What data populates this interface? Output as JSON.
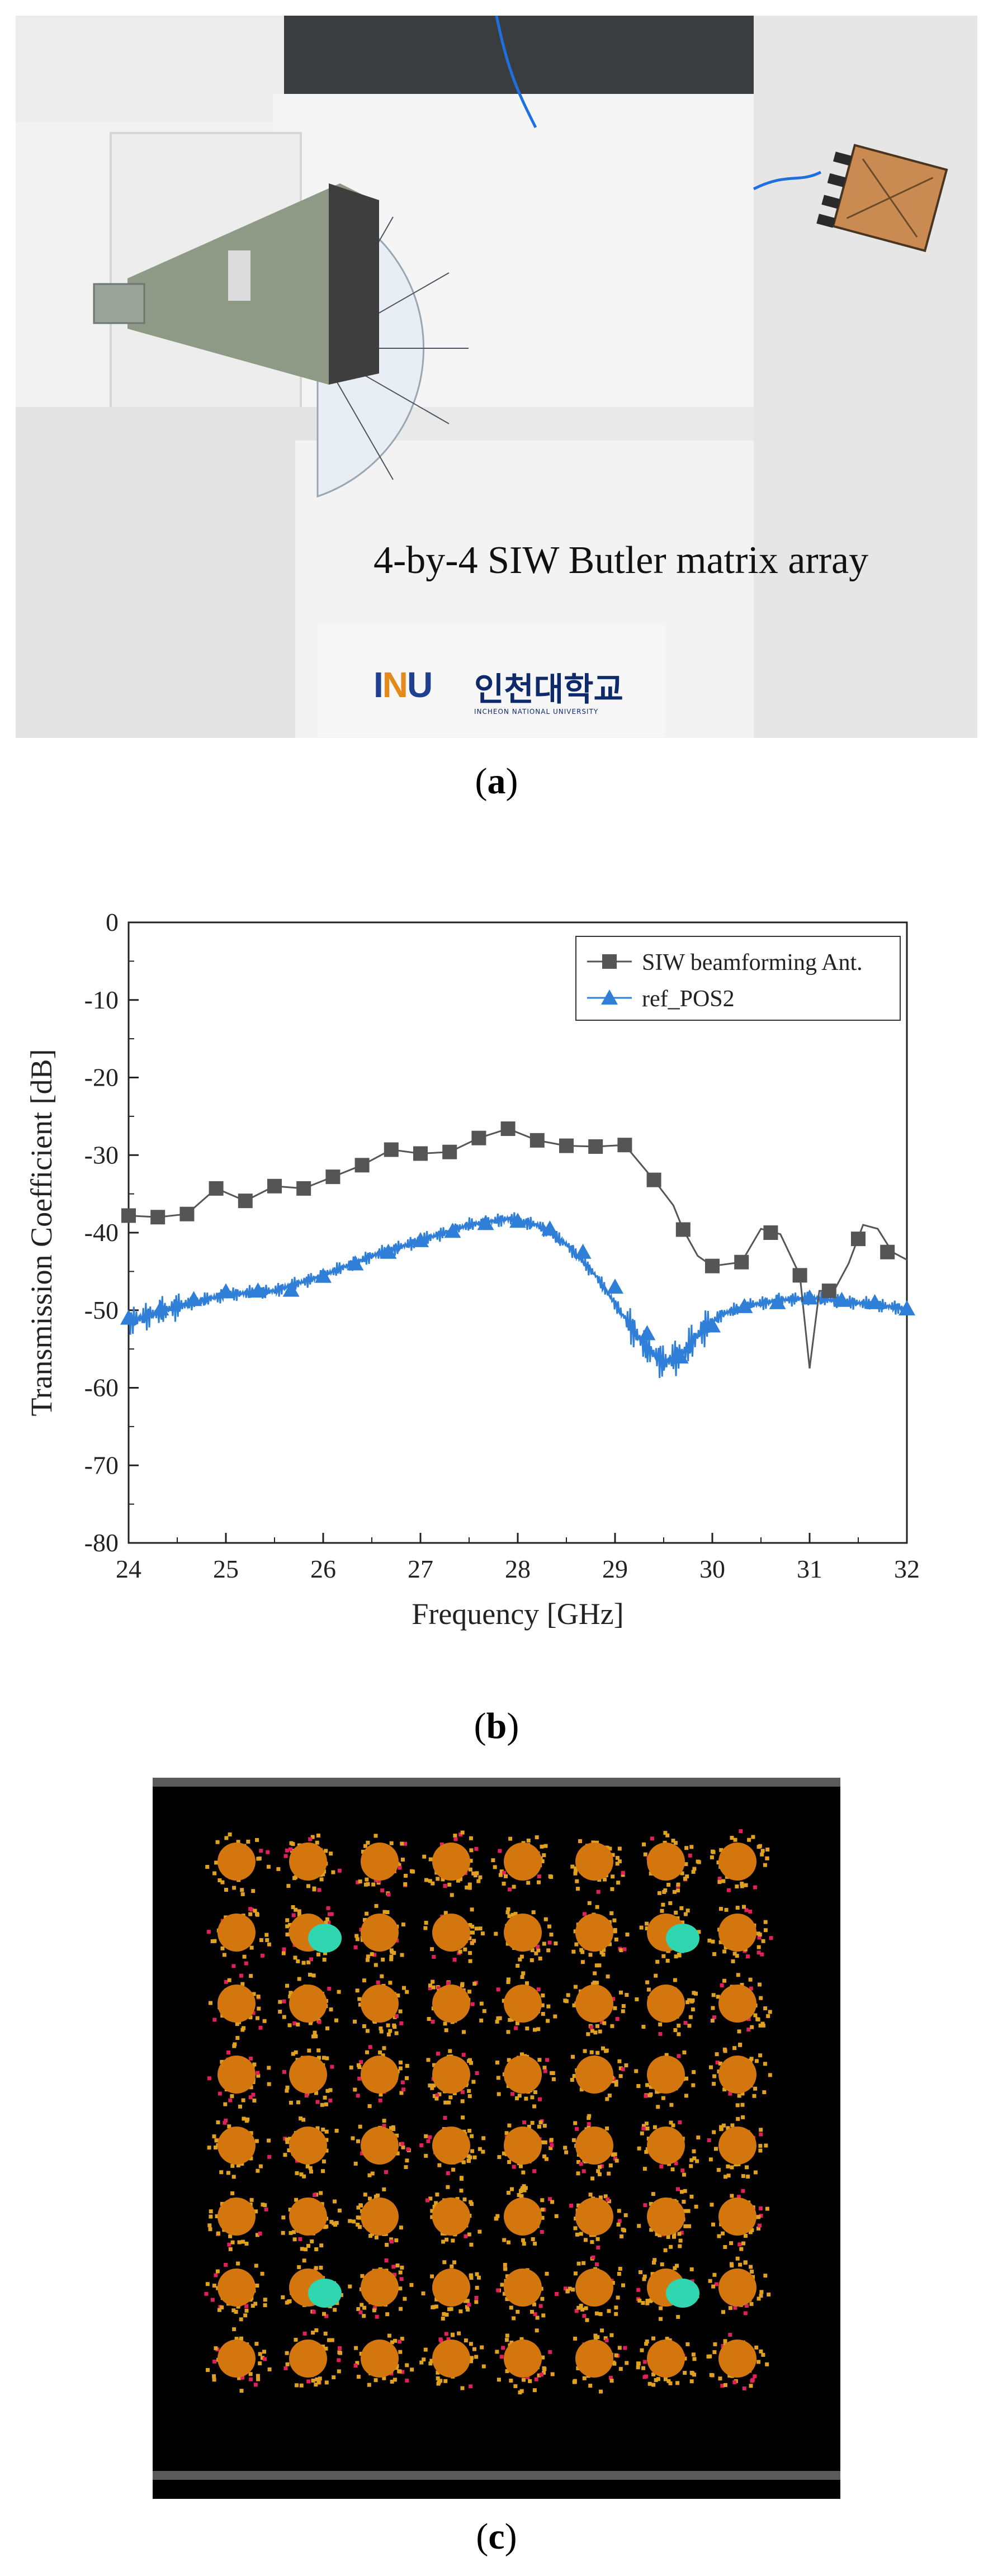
{
  "panel_a": {
    "photo_label": "4-by-4 SIW Butler matrix array",
    "logo_mark": "INU",
    "logo_korean": "인천대학교",
    "logo_english": "INCHEON NATIONAL UNIVERSITY",
    "caption_letter": "a"
  },
  "panel_b": {
    "caption_letter": "b"
  },
  "panel_c": {
    "caption_letter": "c",
    "grid_rows": 8,
    "grid_cols": 8,
    "highlighted_cells": [
      [
        1,
        1
      ],
      [
        1,
        6
      ],
      [
        6,
        1
      ],
      [
        6,
        6
      ]
    ],
    "element_color": "#d4760e",
    "speckle_color": "#e0a020",
    "hot_color": "#e0205a",
    "highlight_color": "#2fd6b0"
  },
  "chart_data": {
    "type": "line",
    "xlabel": "Frequency [GHz]",
    "ylabel": "Transmission Coefficient [dB]",
    "xlim": [
      24,
      32
    ],
    "ylim": [
      -80,
      0
    ],
    "xticks": [
      24,
      25,
      26,
      27,
      28,
      29,
      30,
      31,
      32
    ],
    "yticks": [
      0,
      -10,
      -20,
      -30,
      -40,
      -50,
      -60,
      -70,
      -80
    ],
    "legend_position": "top-right",
    "series": [
      {
        "name": "SIW beamforming Ant.",
        "color": "#555555",
        "marker": "square",
        "x": [
          24.0,
          24.3,
          24.6,
          24.9,
          25.2,
          25.5,
          25.8,
          26.1,
          26.4,
          26.7,
          27.0,
          27.3,
          27.6,
          27.9,
          28.2,
          28.5,
          28.8,
          29.1,
          29.4,
          29.6,
          29.7,
          29.85,
          30.0,
          30.3,
          30.5,
          30.7,
          30.9,
          31.0,
          31.1,
          31.25,
          31.4,
          31.55,
          31.7,
          31.85,
          32.0
        ],
        "y": [
          -37.8,
          -38,
          -37.6,
          -34.3,
          -35.9,
          -34.0,
          -34.3,
          -32.8,
          -31.3,
          -29.3,
          -29.8,
          -29.6,
          -27.8,
          -26.6,
          -28.1,
          -28.8,
          -28.9,
          -28.7,
          -33.2,
          -36.5,
          -39.6,
          -43.0,
          -44.3,
          -43.8,
          -39.5,
          -40.2,
          -45.5,
          -57.5,
          -47.5,
          -47.5,
          -44.0,
          -39.0,
          -39.5,
          -42.5,
          -43.5
        ],
        "marker_x": [
          24.0,
          24.3,
          24.6,
          24.9,
          25.2,
          25.5,
          25.8,
          26.1,
          26.4,
          26.7,
          27.0,
          27.3,
          27.6,
          27.9,
          28.2,
          28.5,
          28.8,
          29.1,
          29.4,
          29.7,
          30.0,
          30.3,
          30.6,
          30.9,
          31.2,
          31.5,
          31.8
        ],
        "marker_y": [
          -37.8,
          -38,
          -37.6,
          -34.3,
          -35.9,
          -34.0,
          -34.3,
          -32.8,
          -31.3,
          -29.3,
          -29.8,
          -29.6,
          -27.8,
          -26.6,
          -28.1,
          -28.8,
          -28.9,
          -28.7,
          -33.2,
          -39.6,
          -44.3,
          -43.8,
          -40.0,
          -45.5,
          -47.5,
          -40.8,
          -42.5
        ]
      },
      {
        "name": "ref_POS2",
        "color": "#2f7fd8",
        "marker": "triangle",
        "x": [
          24.0,
          24.5,
          25.0,
          25.5,
          26.0,
          26.5,
          27.0,
          27.5,
          27.9,
          28.2,
          28.5,
          28.8,
          29.1,
          29.3,
          29.5,
          29.7,
          29.9,
          30.1,
          30.4,
          30.7,
          31.0,
          31.3,
          31.6,
          32.0
        ],
        "y": [
          -51.5,
          -49.5,
          -48.0,
          -47.5,
          -45.5,
          -43.0,
          -41.0,
          -39.0,
          -38.2,
          -39.0,
          -41.5,
          -45.5,
          -51.0,
          -54.5,
          -56.8,
          -55.5,
          -52.5,
          -50.5,
          -49.3,
          -48.7,
          -48.4,
          -48.8,
          -49.2,
          -49.8
        ],
        "marker_x": [
          24.0,
          24.33,
          24.67,
          25.0,
          25.33,
          25.67,
          26.0,
          26.33,
          26.67,
          27.0,
          27.33,
          27.67,
          28.0,
          28.33,
          28.67,
          29.0,
          29.33,
          29.67,
          30.0,
          30.33,
          30.67,
          31.0,
          31.33,
          31.67,
          32.0
        ],
        "marker_y": [
          -51.0,
          -49.8,
          -48.6,
          -47.6,
          -47.5,
          -47.4,
          -45.6,
          -44.0,
          -42.5,
          -41.0,
          -39.8,
          -38.8,
          -38.5,
          -39.5,
          -42.5,
          -47.0,
          -53.0,
          -56.0,
          -52.0,
          -49.5,
          -49.0,
          -48.4,
          -48.7,
          -49.0,
          -49.8
        ]
      }
    ]
  }
}
